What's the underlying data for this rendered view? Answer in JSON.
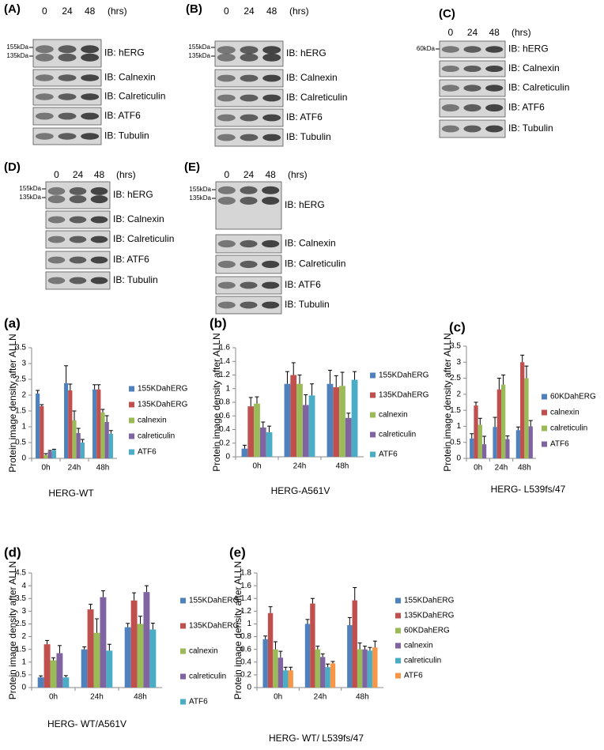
{
  "blots": [
    {
      "label": "(A)",
      "times": [
        "0",
        "24",
        "48"
      ],
      "unit": "(hrs)",
      "markers": [
        "155kDa",
        "135kDa"
      ],
      "rows": [
        "IB: hERG",
        "IB: Calnexin",
        "IB: Calreticulin",
        "IB: ATF6",
        "IB: Tubulin"
      ]
    },
    {
      "label": "(B)",
      "times": [
        "0",
        "24",
        "48"
      ],
      "unit": "(hrs)",
      "markers": [
        "155kDa",
        "135kDa"
      ],
      "rows": [
        "IB: hERG",
        "IB: Calnexin",
        "IB: Calreticulin",
        "IB: ATF6",
        "IB: Tubulin"
      ]
    },
    {
      "label": "(C)",
      "times": [
        "0",
        "24",
        "48"
      ],
      "unit": "(hrs)",
      "markers": [
        "60kDa"
      ],
      "rows": [
        "IB: hERG",
        "IB: Calnexin",
        "IB: Calreticulin",
        "IB: ATF6",
        "IB: Tubulin"
      ]
    },
    {
      "label": "(D)",
      "times": [
        "0",
        "24",
        "48"
      ],
      "unit": "(hrs)",
      "markers": [
        "155kDa",
        "135kDa"
      ],
      "rows": [
        "IB: hERG",
        "IB: Calnexin",
        "IB: Calreticulin",
        "IB: ATF6",
        "IB: Tubulin"
      ]
    },
    {
      "label": "(E)",
      "times": [
        "0",
        "24",
        "48"
      ],
      "unit": "(hrs)",
      "markers": [
        "155kDa",
        "135kDa"
      ],
      "rows": [
        "IB: hERG",
        "IB: Calnexin",
        "IB: Calreticulin",
        "IB: ATF6",
        "IB: Tubulin"
      ]
    }
  ],
  "chart_data": [
    {
      "type": "bar",
      "title": "(a)",
      "x_label": "HERG-WT",
      "y_label": "Protein image density after ALLN",
      "categories": [
        "0h",
        "24h",
        "48h"
      ],
      "ylim": [
        0,
        3.5
      ],
      "yticks": [
        0,
        0.5,
        1,
        1.5,
        2,
        2.5,
        3,
        3.5
      ],
      "series": [
        {
          "name": "155KDahERG",
          "color": "#4f81bd",
          "values": [
            2.05,
            2.38,
            2.18
          ],
          "errors": [
            0.1,
            0.55,
            0.15
          ]
        },
        {
          "name": "135KDahERG",
          "color": "#c0504d",
          "values": [
            1.65,
            2.15,
            2.18
          ],
          "errors": [
            0.05,
            0.2,
            0.15
          ]
        },
        {
          "name": "calnexin",
          "color": "#9bbb59",
          "values": [
            0.1,
            1.2,
            1.45
          ],
          "errors": [
            0.05,
            0.3,
            0.1
          ]
        },
        {
          "name": "calreticulin",
          "color": "#8064a2",
          "values": [
            0.22,
            0.8,
            1.15
          ],
          "errors": [
            0.03,
            0.15,
            0.2
          ]
        },
        {
          "name": "ATF6",
          "color": "#4bacc6",
          "values": [
            0.27,
            0.5,
            0.78
          ],
          "errors": [
            0.02,
            0.1,
            0.1
          ]
        }
      ]
    },
    {
      "type": "bar",
      "title": "(b)",
      "x_label": "HERG-A561V",
      "y_label": "Protein image density after ALLN",
      "categories": [
        "0h",
        "24h",
        "48h"
      ],
      "ylim": [
        0,
        1.6
      ],
      "yticks": [
        0,
        0.2,
        0.4,
        0.6,
        0.8,
        1,
        1.2,
        1.4,
        1.6
      ],
      "series": [
        {
          "name": "155KDahERG",
          "color": "#4f81bd",
          "values": [
            0.12,
            1.07,
            1.07
          ],
          "errors": [
            0.05,
            0.18,
            0.2
          ]
        },
        {
          "name": "135KDahERG",
          "color": "#c0504d",
          "values": [
            0.74,
            1.2,
            1.02
          ],
          "errors": [
            0.13,
            0.18,
            0.17
          ]
        },
        {
          "name": "calnexin",
          "color": "#9bbb59",
          "values": [
            0.78,
            1.07,
            1.04
          ],
          "errors": [
            0.1,
            0.13,
            0.2
          ]
        },
        {
          "name": "calreticulin",
          "color": "#8064a2",
          "values": [
            0.43,
            0.76,
            0.57
          ],
          "errors": [
            0.08,
            0.15,
            0.07
          ]
        },
        {
          "name": "ATF6",
          "color": "#4bacc6",
          "values": [
            0.36,
            0.9,
            1.13
          ],
          "errors": [
            0.09,
            0.17,
            0.12
          ]
        }
      ]
    },
    {
      "type": "bar",
      "title": "(c)",
      "x_label": "HERG- L539fs/47",
      "y_label": "Protein image density after ALLN",
      "categories": [
        "0h",
        "24h",
        "48h"
      ],
      "ylim": [
        0,
        3.5
      ],
      "yticks": [
        0,
        0.5,
        1,
        1.5,
        2,
        2.5,
        3,
        3.5
      ],
      "series": [
        {
          "name": "60KDahERG",
          "color": "#4f81bd",
          "values": [
            0.62,
            0.98,
            0.88
          ],
          "errors": [
            0.15,
            0.3,
            0.1
          ]
        },
        {
          "name": "calnexin",
          "color": "#c0504d",
          "values": [
            1.65,
            2.15,
            3.0
          ],
          "errors": [
            0.1,
            0.35,
            0.22
          ]
        },
        {
          "name": "calreticulin",
          "color": "#9bbb59",
          "values": [
            1.05,
            2.3,
            2.5
          ],
          "errors": [
            0.2,
            0.3,
            0.38
          ]
        },
        {
          "name": "ATF6",
          "color": "#8064a2",
          "values": [
            0.44,
            0.6,
            1.0
          ],
          "errors": [
            0.25,
            0.1,
            0.18
          ]
        }
      ]
    },
    {
      "type": "bar",
      "title": "(d)",
      "x_label": "HERG- WT/A561V",
      "y_label": "Protein image density after ALLN",
      "categories": [
        "0h",
        "24h",
        "48h"
      ],
      "ylim": [
        0,
        4.5
      ],
      "yticks": [
        0,
        0.5,
        1,
        1.5,
        2,
        2.5,
        3,
        3.5,
        4,
        4.5
      ],
      "series": [
        {
          "name": "155KDahERG",
          "color": "#4f81bd",
          "values": [
            0.4,
            1.5,
            2.37
          ],
          "errors": [
            0.06,
            0.1,
            0.15
          ]
        },
        {
          "name": "135KDahERG",
          "color": "#c0504d",
          "values": [
            1.7,
            3.07,
            3.42
          ],
          "errors": [
            0.15,
            0.2,
            0.3
          ]
        },
        {
          "name": "calnexin",
          "color": "#9bbb59",
          "values": [
            1.07,
            2.15,
            2.5
          ],
          "errors": [
            0.1,
            0.55,
            0.3
          ]
        },
        {
          "name": "calreticulin",
          "color": "#8064a2",
          "values": [
            1.35,
            3.55,
            3.75
          ],
          "errors": [
            0.3,
            0.25,
            0.25
          ]
        },
        {
          "name": "ATF6",
          "color": "#4bacc6",
          "values": [
            0.4,
            1.45,
            2.28
          ],
          "errors": [
            0.07,
            0.25,
            0.25
          ]
        }
      ]
    },
    {
      "type": "bar",
      "title": "(e)",
      "x_label": "HERG- WT/ L539fs/47",
      "y_label": "Protein image density after ALLN",
      "categories": [
        "0h",
        "24h",
        "48h"
      ],
      "ylim": [
        0,
        1.8
      ],
      "yticks": [
        0,
        0.2,
        0.4,
        0.6,
        0.8,
        1,
        1.2,
        1.4,
        1.6,
        1.8
      ],
      "series": [
        {
          "name": "155KDahERG",
          "color": "#4f81bd",
          "values": [
            0.76,
            1.0,
            0.98
          ],
          "errors": [
            0.05,
            0.07,
            0.12
          ]
        },
        {
          "name": "135KDahERG",
          "color": "#c0504d",
          "values": [
            1.17,
            1.32,
            1.37
          ],
          "errors": [
            0.1,
            0.08,
            0.2
          ]
        },
        {
          "name": "60KDahERG",
          "color": "#9bbb59",
          "values": [
            0.6,
            0.6,
            0.6
          ],
          "errors": [
            0.12,
            0.05,
            0.1
          ]
        },
        {
          "name": "calnexin",
          "color": "#8064a2",
          "values": [
            0.47,
            0.48,
            0.6
          ],
          "errors": [
            0.1,
            0.05,
            0.05
          ]
        },
        {
          "name": "calreticulin",
          "color": "#4bacc6",
          "values": [
            0.27,
            0.32,
            0.58
          ],
          "errors": [
            0.05,
            0.05,
            0.05
          ]
        },
        {
          "name": "ATF6",
          "color": "#f79646",
          "values": [
            0.27,
            0.38,
            0.63
          ],
          "errors": [
            0.05,
            0.03,
            0.1
          ]
        }
      ]
    }
  ]
}
